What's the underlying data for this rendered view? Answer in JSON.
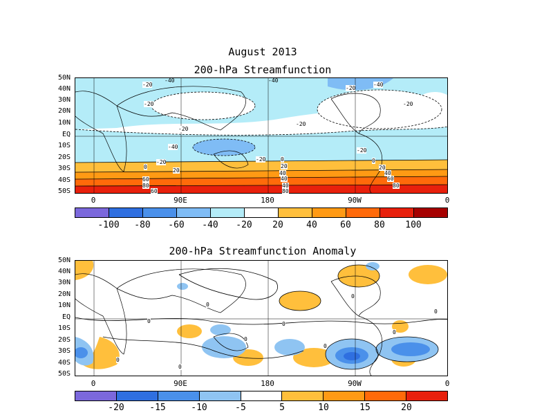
{
  "title": "August 2013",
  "panel1": {
    "title": "200-hPa Streamfunction",
    "lat_labels": [
      "50N",
      "40N",
      "30N",
      "20N",
      "10N",
      "EQ",
      "10S",
      "20S",
      "30S",
      "40S",
      "50S"
    ],
    "lon_labels": [
      "0",
      "90E",
      "180",
      "90W",
      "0"
    ],
    "contour_labels": [
      "-20",
      "-40",
      "-20",
      "-40",
      "-20",
      "-20",
      "-20",
      "-40",
      "-40",
      "-20",
      "-20",
      "-20",
      "0",
      "20",
      "0",
      "20",
      "40",
      "60",
      "80",
      "40",
      "20",
      "40",
      "60",
      "80",
      "0",
      "-20",
      "40",
      "60",
      "80"
    ],
    "colorbar": {
      "colors": [
        "#7b68dc",
        "#2f6fe0",
        "#4a90ea",
        "#7fbcf5",
        "#b4ecf8",
        "#ffffff",
        "#ffbf3c",
        "#ff9a14",
        "#ff6a0a",
        "#e8200c",
        "#a60000"
      ],
      "ticks": [
        "-100",
        "-80",
        "-60",
        "-40",
        "-20",
        "20",
        "40",
        "60",
        "80",
        "100"
      ]
    }
  },
  "panel2": {
    "title": "200-hPa Streamfunction Anomaly",
    "lat_labels": [
      "50N",
      "40N",
      "30N",
      "20N",
      "10N",
      "EQ",
      "10S",
      "20S",
      "30S",
      "40S",
      "50S"
    ],
    "lon_labels": [
      "0",
      "90E",
      "180",
      "90W",
      "0"
    ],
    "contour_labels": [
      "0",
      "0",
      "0",
      "0",
      "0",
      "0",
      "0",
      "0",
      "0",
      "0"
    ],
    "colorbar": {
      "colors": [
        "#7b68dc",
        "#2f6fe0",
        "#4a90ea",
        "#8fc4f2",
        "#ffffff",
        "#ffbf3c",
        "#ff9a14",
        "#ff6a0a",
        "#e8200c"
      ],
      "ticks": [
        "-20",
        "-15",
        "-10",
        "-5",
        "5",
        "10",
        "15",
        "20"
      ]
    }
  }
}
